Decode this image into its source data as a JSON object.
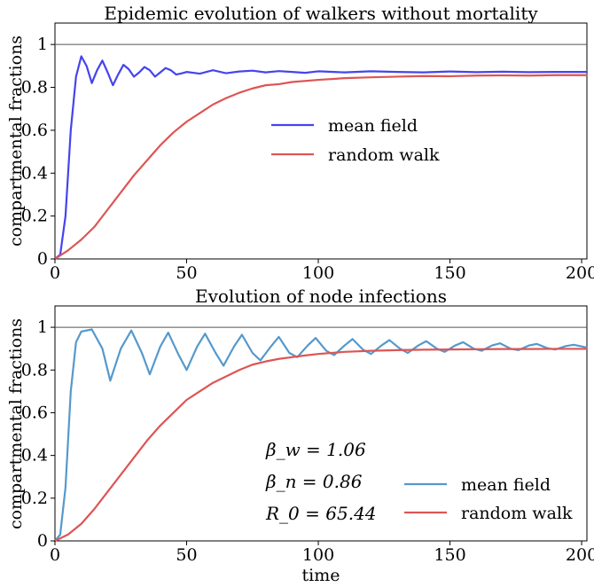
{
  "chart_data": [
    {
      "type": "line",
      "title": "Epidemic evolution of walkers without mortality",
      "xlabel": "",
      "ylabel": "compartmental fractions",
      "xlim": [
        0,
        202
      ],
      "ylim": [
        0,
        1.1
      ],
      "xticks": [
        "0",
        "50",
        "100",
        "150",
        "200"
      ],
      "yticks": [
        "0",
        "0.2",
        "0.4",
        "0.6",
        "0.8",
        "1"
      ],
      "grid": false,
      "legend": "center",
      "reference_line": 1,
      "series": [
        {
          "name": "mean field",
          "color": "#4444ee",
          "x": [
            0,
            2,
            4,
            6,
            8,
            10,
            12,
            14,
            16,
            18,
            20,
            22,
            24,
            26,
            28,
            30,
            32,
            34,
            36,
            38,
            40,
            42,
            44,
            46,
            48,
            50,
            55,
            60,
            65,
            70,
            75,
            80,
            85,
            90,
            95,
            100,
            110,
            120,
            130,
            140,
            150,
            160,
            170,
            180,
            190,
            202
          ],
          "values": [
            0,
            0.02,
            0.2,
            0.6,
            0.85,
            0.945,
            0.9,
            0.82,
            0.88,
            0.925,
            0.87,
            0.81,
            0.86,
            0.905,
            0.885,
            0.85,
            0.87,
            0.895,
            0.88,
            0.85,
            0.87,
            0.89,
            0.88,
            0.86,
            0.865,
            0.872,
            0.864,
            0.88,
            0.866,
            0.874,
            0.878,
            0.87,
            0.876,
            0.872,
            0.868,
            0.875,
            0.87,
            0.875,
            0.872,
            0.87,
            0.874,
            0.871,
            0.873,
            0.871,
            0.872,
            0.872
          ]
        },
        {
          "name": "random walk",
          "color": "#dd5555",
          "x": [
            0,
            5,
            10,
            15,
            20,
            25,
            30,
            35,
            40,
            45,
            50,
            55,
            60,
            65,
            70,
            75,
            80,
            85,
            90,
            100,
            110,
            120,
            130,
            140,
            150,
            160,
            170,
            180,
            190,
            202
          ],
          "values": [
            0,
            0.04,
            0.09,
            0.15,
            0.23,
            0.31,
            0.39,
            0.46,
            0.53,
            0.59,
            0.64,
            0.68,
            0.72,
            0.75,
            0.775,
            0.795,
            0.81,
            0.815,
            0.825,
            0.835,
            0.843,
            0.847,
            0.85,
            0.853,
            0.852,
            0.855,
            0.856,
            0.855,
            0.857,
            0.857
          ]
        }
      ]
    },
    {
      "type": "line",
      "title": "Evolution of node infections",
      "xlabel": "time",
      "ylabel": "compartmental fractions",
      "xlim": [
        0,
        202
      ],
      "ylim": [
        0,
        1.1
      ],
      "xticks": [
        "0",
        "50",
        "100",
        "150",
        "200"
      ],
      "yticks": [
        "0",
        "0.2",
        "0.4",
        "0.6",
        "0.8",
        "1"
      ],
      "grid": false,
      "legend": "lower-right",
      "reference_line": 1,
      "annotations": [
        "β_w = 1.06",
        "β_n = 0.86",
        "R_0 = 65.44"
      ],
      "series": [
        {
          "name": "mean field",
          "color": "#5599cc",
          "x": [
            0,
            2,
            4,
            6,
            8,
            10,
            14,
            18,
            21,
            25,
            29,
            33,
            36,
            40,
            43,
            47,
            50,
            54,
            57,
            61,
            64,
            68,
            71,
            75,
            78,
            82,
            85,
            89,
            92,
            96,
            99,
            103,
            106,
            110,
            113,
            117,
            120,
            124,
            127,
            131,
            134,
            138,
            141,
            145,
            148,
            152,
            155,
            159,
            162,
            166,
            169,
            173,
            176,
            180,
            183,
            187,
            190,
            194,
            197,
            202
          ],
          "values": [
            0,
            0.03,
            0.25,
            0.7,
            0.93,
            0.98,
            0.99,
            0.9,
            0.75,
            0.9,
            0.985,
            0.88,
            0.78,
            0.91,
            0.975,
            0.87,
            0.8,
            0.91,
            0.97,
            0.88,
            0.82,
            0.91,
            0.965,
            0.88,
            0.845,
            0.91,
            0.955,
            0.88,
            0.86,
            0.915,
            0.95,
            0.89,
            0.87,
            0.915,
            0.945,
            0.895,
            0.875,
            0.915,
            0.94,
            0.9,
            0.88,
            0.915,
            0.935,
            0.9,
            0.885,
            0.915,
            0.93,
            0.9,
            0.89,
            0.915,
            0.925,
            0.9,
            0.893,
            0.915,
            0.922,
            0.902,
            0.896,
            0.912,
            0.918,
            0.905
          ]
        },
        {
          "name": "random walk",
          "color": "#dd5555",
          "x": [
            0,
            5,
            10,
            15,
            20,
            25,
            30,
            35,
            40,
            45,
            50,
            55,
            60,
            65,
            70,
            75,
            80,
            85,
            90,
            95,
            100,
            110,
            120,
            130,
            140,
            150,
            160,
            170,
            180,
            190,
            202
          ],
          "values": [
            0,
            0.03,
            0.08,
            0.15,
            0.23,
            0.31,
            0.39,
            0.47,
            0.54,
            0.6,
            0.66,
            0.7,
            0.74,
            0.77,
            0.8,
            0.825,
            0.84,
            0.852,
            0.86,
            0.868,
            0.875,
            0.885,
            0.89,
            0.893,
            0.895,
            0.896,
            0.897,
            0.898,
            0.898,
            0.899,
            0.899
          ]
        }
      ]
    }
  ]
}
